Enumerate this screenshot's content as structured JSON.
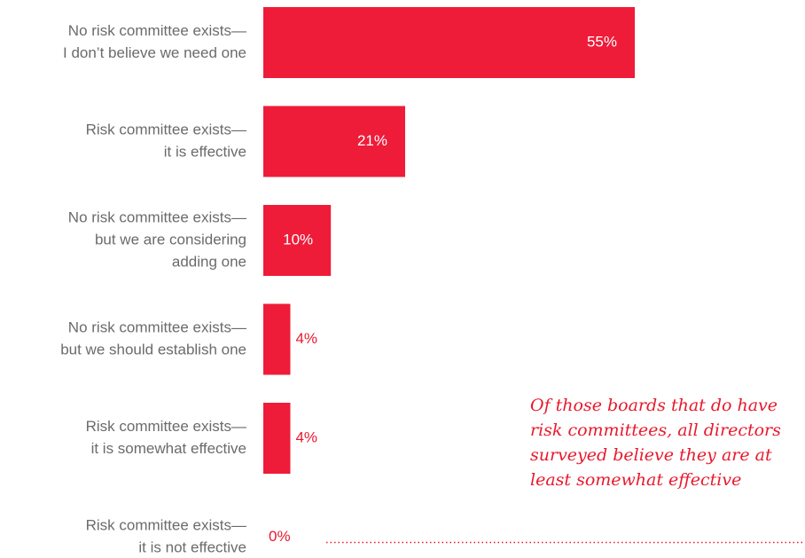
{
  "colors": {
    "bar": "#ee1c39",
    "label": "#6b6b6b",
    "accent": "#e8192c"
  },
  "callout": "Of those boards that do have\nrisk committees, all directors\nsurveyed believe they are at\nleast somewhat effective",
  "chart_data": {
    "type": "bar",
    "orientation": "horizontal",
    "categories": [
      [
        "No risk committee exists—",
        "I don’t believe we need one"
      ],
      [
        "Risk committee exists—",
        "it is effective"
      ],
      [
        "No risk committee exists—",
        "but we are considering",
        "adding one"
      ],
      [
        "No risk committee exists—",
        "but we should establish one"
      ],
      [
        "Risk committee exists—",
        "it is somewhat effective"
      ],
      [
        "Risk committee exists—",
        "it is not effective"
      ]
    ],
    "values": [
      55,
      21,
      10,
      4,
      4,
      0
    ],
    "value_labels": [
      "55%",
      "21%",
      "10%",
      "4%",
      "4%",
      "0%"
    ],
    "xlim": [
      0,
      100
    ],
    "grid": false,
    "legend": "none"
  }
}
